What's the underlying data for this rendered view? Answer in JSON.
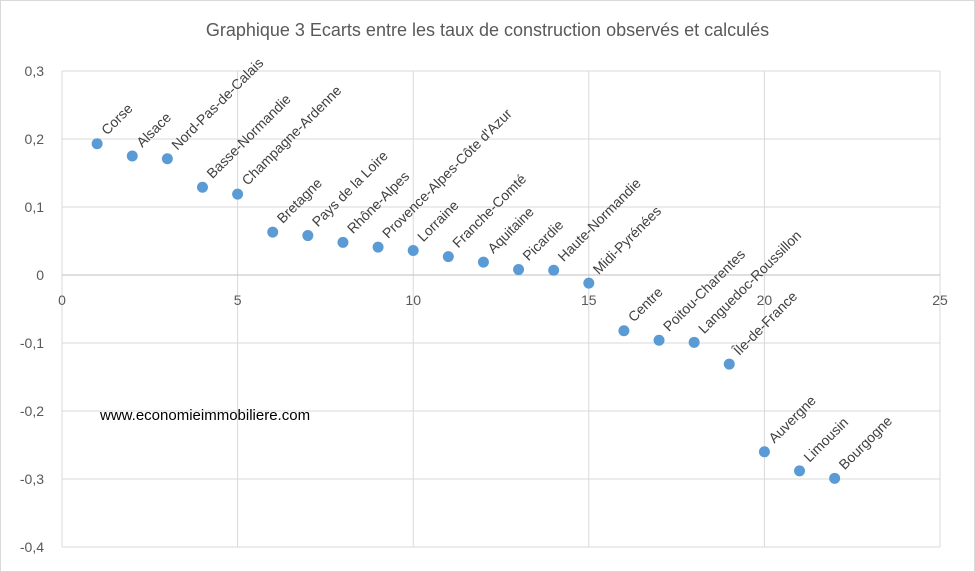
{
  "chart_data": {
    "type": "scatter",
    "title": "Graphique 3 Ecarts entre les taux de construction observés et calculés",
    "xlabel": "",
    "ylabel": "",
    "xlim": [
      0,
      25
    ],
    "ylim": [
      -0.4,
      0.3
    ],
    "x_ticks": [
      0,
      5,
      10,
      15,
      20,
      25
    ],
    "y_ticks": [
      "0,3",
      "0,2",
      "0,1",
      "0",
      "-0,1",
      "-0,2",
      "-0,3",
      "-0,4"
    ],
    "y_tick_values": [
      0.3,
      0.2,
      0.1,
      0,
      -0.1,
      -0.2,
      -0.3,
      -0.4
    ],
    "grid": "horizontal and vertical",
    "marker_color": "#5b9bd5",
    "points": [
      {
        "x": 1,
        "y": 0.193,
        "label": "Corse"
      },
      {
        "x": 2,
        "y": 0.175,
        "label": "Alsace"
      },
      {
        "x": 3,
        "y": 0.171,
        "label": "Nord-Pas-de-Calais"
      },
      {
        "x": 4,
        "y": 0.129,
        "label": "Basse-Normandie"
      },
      {
        "x": 5,
        "y": 0.119,
        "label": "Champagne-Ardenne"
      },
      {
        "x": 6,
        "y": 0.063,
        "label": "Bretagne"
      },
      {
        "x": 7,
        "y": 0.058,
        "label": "Pays de la Loire"
      },
      {
        "x": 8,
        "y": 0.048,
        "label": "Rhône-Alpes"
      },
      {
        "x": 9,
        "y": 0.041,
        "label": "Provence-Alpes-Côte d'Azur"
      },
      {
        "x": 10,
        "y": 0.036,
        "label": "Lorraine"
      },
      {
        "x": 11,
        "y": 0.027,
        "label": "Franche-Comté"
      },
      {
        "x": 12,
        "y": 0.019,
        "label": "Aquitaine"
      },
      {
        "x": 13,
        "y": 0.008,
        "label": "Picardie"
      },
      {
        "x": 14,
        "y": 0.007,
        "label": "Haute-Normandie"
      },
      {
        "x": 15,
        "y": -0.012,
        "label": "Midi-Pyrénées"
      },
      {
        "x": 16,
        "y": -0.082,
        "label": "Centre"
      },
      {
        "x": 17,
        "y": -0.096,
        "label": "Poitou-Charentes"
      },
      {
        "x": 18,
        "y": -0.099,
        "label": "Languedoc-Roussillon"
      },
      {
        "x": 19,
        "y": -0.131,
        "label": "Île-de-France"
      },
      {
        "x": 20,
        "y": -0.26,
        "label": "Auvergne"
      },
      {
        "x": 21,
        "y": -0.288,
        "label": "Limousin"
      },
      {
        "x": 22,
        "y": -0.299,
        "label": "Bourgogne"
      }
    ]
  },
  "watermark": "www.economieimmobiliere.com"
}
